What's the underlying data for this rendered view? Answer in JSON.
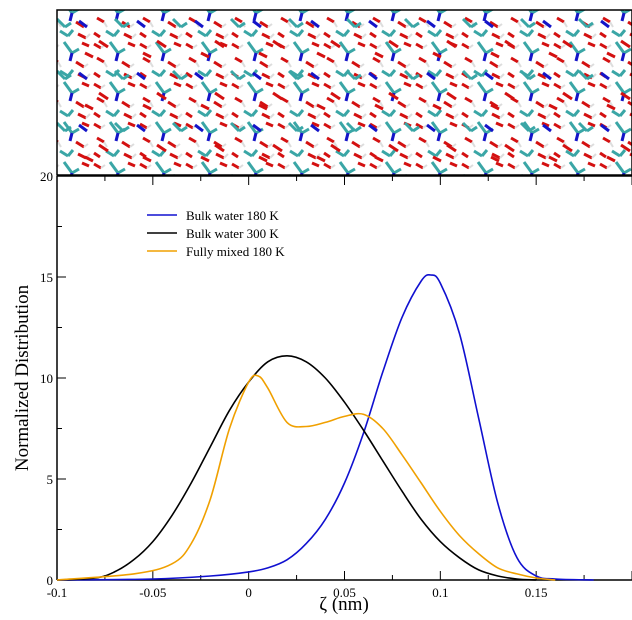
{
  "chart_data": {
    "type": "line",
    "xlabel": "ζ  (nm)",
    "ylabel": "Normalized Distribution",
    "xlim": [
      -0.1,
      0.2
    ],
    "ylim": [
      0,
      20
    ],
    "xticks": [
      -0.1,
      -0.05,
      0,
      0.05,
      0.1,
      0.15
    ],
    "xtick_labels": [
      "-0.1",
      "-0.05",
      "0",
      "0.05",
      "0.1",
      "0.15"
    ],
    "yticks": [
      0,
      5,
      10,
      15,
      20
    ],
    "ytick_labels": [
      "0",
      "5",
      "10",
      "15",
      "20"
    ],
    "grid": false,
    "legend_position": "top-left",
    "inset": "molecular snapshot image above the plot (water and solute molecules)",
    "series": [
      {
        "name": "Bulk water 180 K",
        "color": "#1010d0",
        "x": [
          -0.1,
          -0.05,
          -0.02,
          0.0,
          0.01,
          0.02,
          0.03,
          0.04,
          0.05,
          0.06,
          0.07,
          0.08,
          0.09,
          0.095,
          0.1,
          0.11,
          0.12,
          0.13,
          0.14,
          0.15,
          0.16,
          0.18
        ],
        "y": [
          0,
          0.05,
          0.2,
          0.4,
          0.6,
          1.0,
          1.8,
          3.0,
          4.8,
          7.3,
          10.3,
          13.0,
          14.8,
          15.1,
          14.7,
          12.2,
          8.0,
          3.8,
          1.1,
          0.2,
          0.05,
          0
        ]
      },
      {
        "name": "Bulk water 300 K",
        "color": "#000000",
        "x": [
          -0.1,
          -0.08,
          -0.07,
          -0.06,
          -0.05,
          -0.04,
          -0.03,
          -0.02,
          -0.01,
          0.0,
          0.01,
          0.02,
          0.03,
          0.04,
          0.05,
          0.06,
          0.07,
          0.08,
          0.09,
          0.1,
          0.11,
          0.12,
          0.13,
          0.14,
          0.15
        ],
        "y": [
          0,
          0.1,
          0.4,
          1.0,
          1.9,
          3.2,
          4.8,
          6.6,
          8.4,
          9.8,
          10.8,
          11.1,
          10.8,
          10.0,
          8.8,
          7.4,
          5.9,
          4.4,
          3.0,
          1.9,
          1.1,
          0.5,
          0.2,
          0.05,
          0
        ]
      },
      {
        "name": "Fully mixed 180 K",
        "color": "#f0a000",
        "x": [
          -0.1,
          -0.06,
          -0.04,
          -0.03,
          -0.02,
          -0.01,
          0.0,
          0.005,
          0.01,
          0.02,
          0.03,
          0.04,
          0.05,
          0.06,
          0.07,
          0.08,
          0.09,
          0.1,
          0.11,
          0.12,
          0.13,
          0.14,
          0.15,
          0.16
        ],
        "y": [
          0,
          0.3,
          0.8,
          1.8,
          4.0,
          7.5,
          9.8,
          10.1,
          9.5,
          7.8,
          7.6,
          7.8,
          8.1,
          8.2,
          7.5,
          6.2,
          4.8,
          3.4,
          2.2,
          1.3,
          0.6,
          0.3,
          0.1,
          0
        ]
      }
    ]
  }
}
